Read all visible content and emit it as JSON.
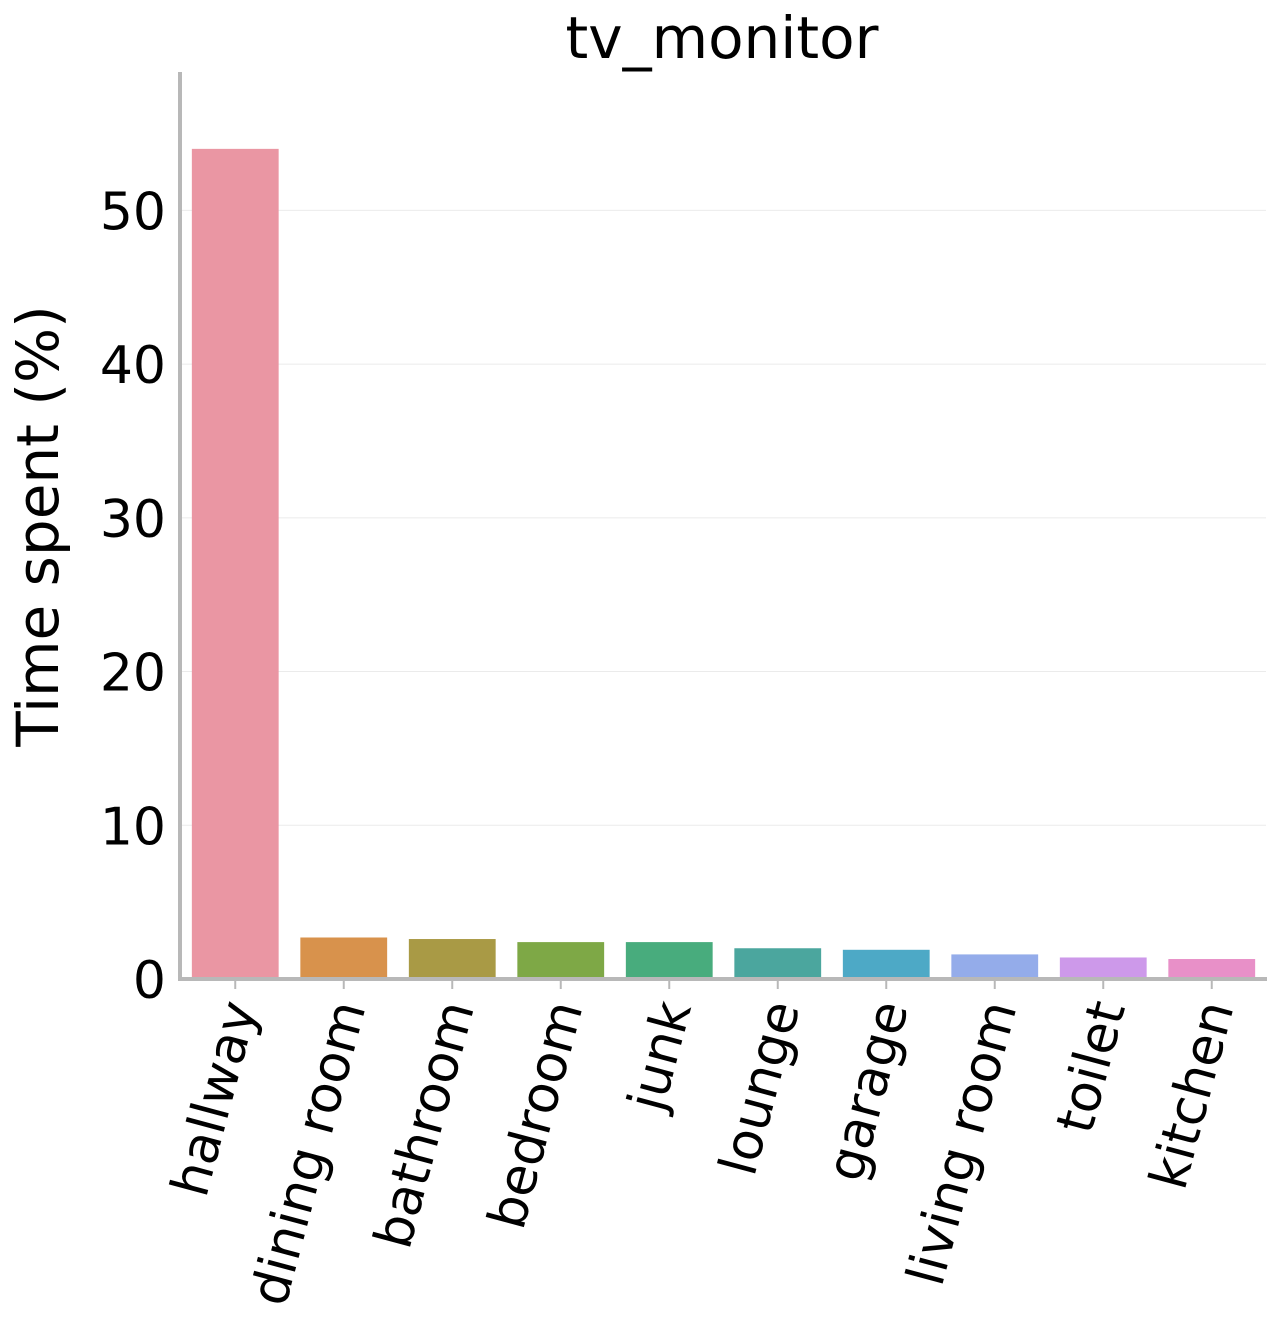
{
  "chart_data": {
    "type": "bar",
    "title": "tv_monitor",
    "xlabel": "",
    "ylabel": "Time spent (%)",
    "ylim": [
      0,
      59
    ],
    "yticks": [
      0,
      10,
      20,
      30,
      40,
      50
    ],
    "grid": "y",
    "categories": [
      "hallway",
      "dining room",
      "bathroom",
      "bedroom",
      "junk",
      "lounge",
      "garage",
      "living room",
      "toilet",
      "kitchen"
    ],
    "values": [
      54.0,
      2.7,
      2.6,
      2.4,
      2.4,
      2.0,
      1.9,
      1.6,
      1.4,
      1.3
    ],
    "colors": [
      "#ea96a3",
      "#d8924c",
      "#a99a45",
      "#7ea846",
      "#48ac7d",
      "#4ba69e",
      "#4da9c6",
      "#94acea",
      "#cd99ea",
      "#e890c8"
    ]
  }
}
